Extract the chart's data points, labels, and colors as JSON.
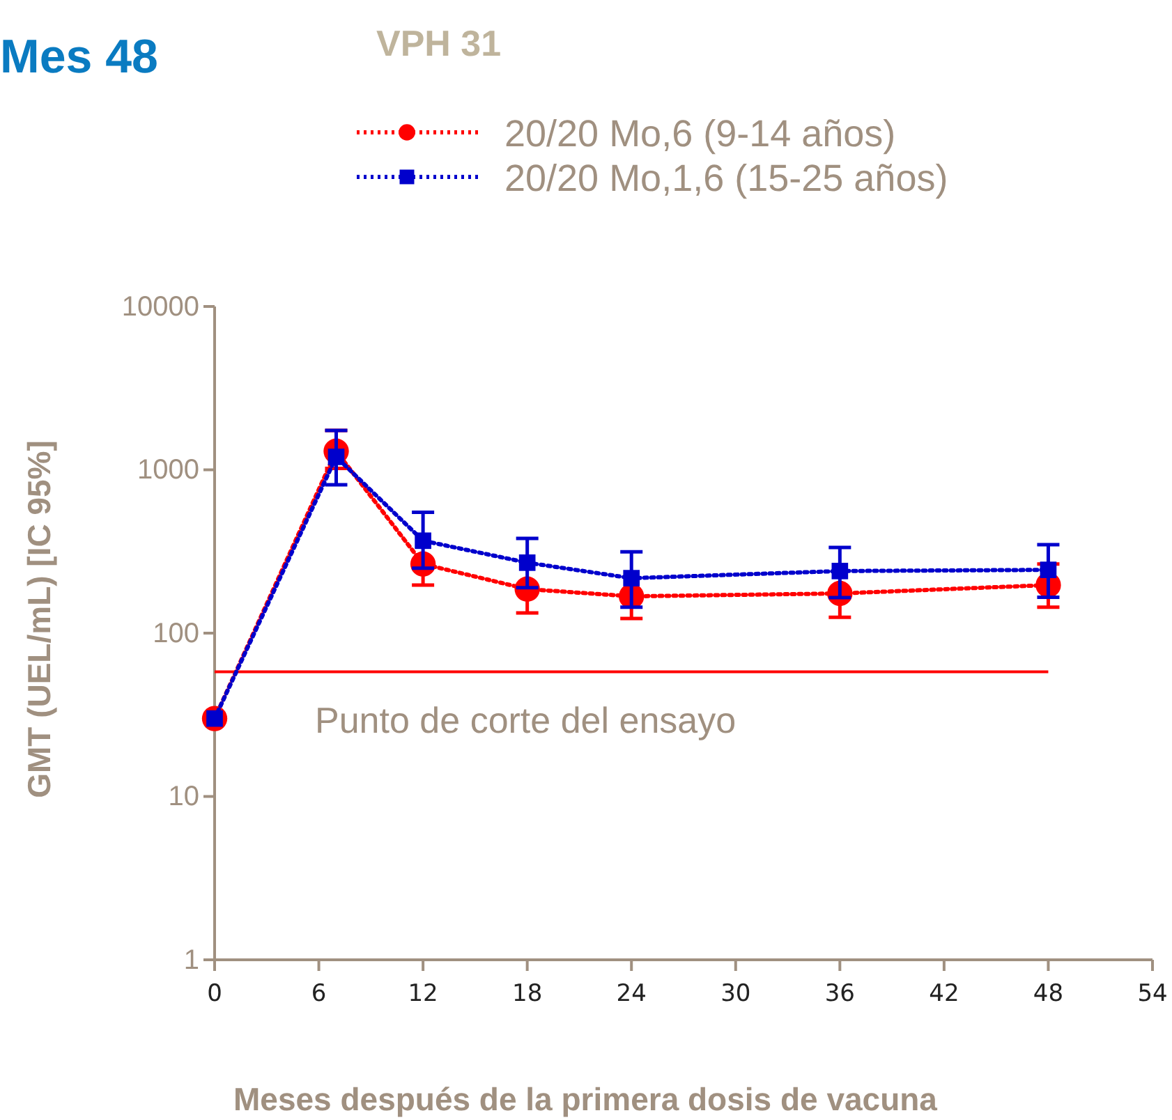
{
  "chart_data": {
    "type": "line",
    "title": "Mes 48",
    "subtitle": "VPH 31",
    "xlabel": "Meses después de la primera dosis de vacuna",
    "ylabel": "GMT (UEL/mL) [IC 95%]",
    "x": [
      0,
      7,
      12,
      18,
      24,
      36,
      48
    ],
    "series": [
      {
        "name": "20/20 Mo,6 (9-14 años)",
        "color": "#ff0000",
        "marker": "circle",
        "values": [
          30,
          1300,
          265,
          186,
          168,
          175,
          197
        ],
        "errors": [
          null,
          [
            1020,
            1740
          ],
          [
            197,
            265
          ],
          [
            133,
            186
          ],
          [
            123,
            168
          ],
          [
            125,
            175
          ],
          [
            144,
            265
          ]
        ]
      },
      {
        "name": "20/20 Mo,1,6 (15-25 años)",
        "color": "#0000cc",
        "marker": "square",
        "values": [
          30,
          1200,
          368,
          270,
          217,
          240,
          244
        ],
        "errors": [
          null,
          [
            810,
            1740
          ],
          [
            250,
            550
          ],
          [
            190,
            380
          ],
          [
            144,
            315
          ],
          [
            165,
            335
          ],
          [
            166,
            348
          ]
        ]
      }
    ],
    "log": true,
    "line_style": "dotted",
    "legend": "top",
    "grid": false,
    "xlim": [
      0,
      54
    ],
    "xticks": [
      0,
      6,
      12,
      18,
      24,
      30,
      36,
      42,
      48,
      54
    ],
    "ylim": [
      1,
      10000
    ],
    "yticks": [
      1,
      10,
      100,
      1000,
      10000
    ],
    "ref_lines": [
      {
        "axis": "y",
        "value": 58,
        "label": "Punto de corte del ensayo",
        "color": "#ff0000"
      }
    ]
  }
}
